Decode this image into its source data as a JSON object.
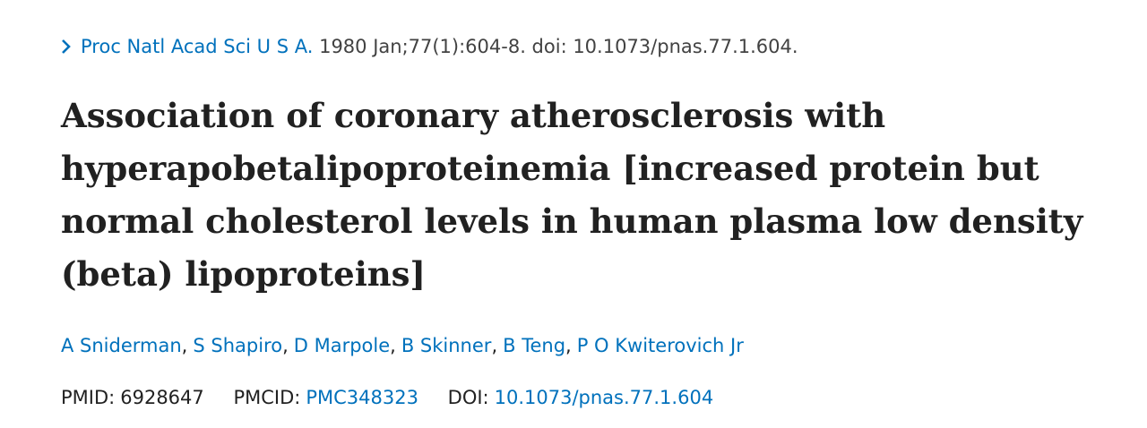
{
  "citation": {
    "journal": "Proc Natl Acad Sci U S A.",
    "details": "1980 Jan;77(1):604-8. doi: 10.1073/pnas.77.1.604."
  },
  "title": "Association of coronary atherosclerosis with hyperapobetalipoproteinemia [increased protein but normal cholesterol levels in human plasma low density (beta) lipoproteins]",
  "authors": {
    "separator": ",",
    "names": [
      "A Sniderman",
      "S Shapiro",
      "D Marpole",
      "B Skinner",
      "B Teng",
      "P O Kwiterovich Jr"
    ]
  },
  "identifiers": {
    "pmid_label": "PMID:",
    "pmid": "6928647",
    "pmcid_label": "PMCID:",
    "pmcid": "PMC348323",
    "doi_label": "DOI:",
    "doi": "10.1073/pnas.77.1.604"
  }
}
